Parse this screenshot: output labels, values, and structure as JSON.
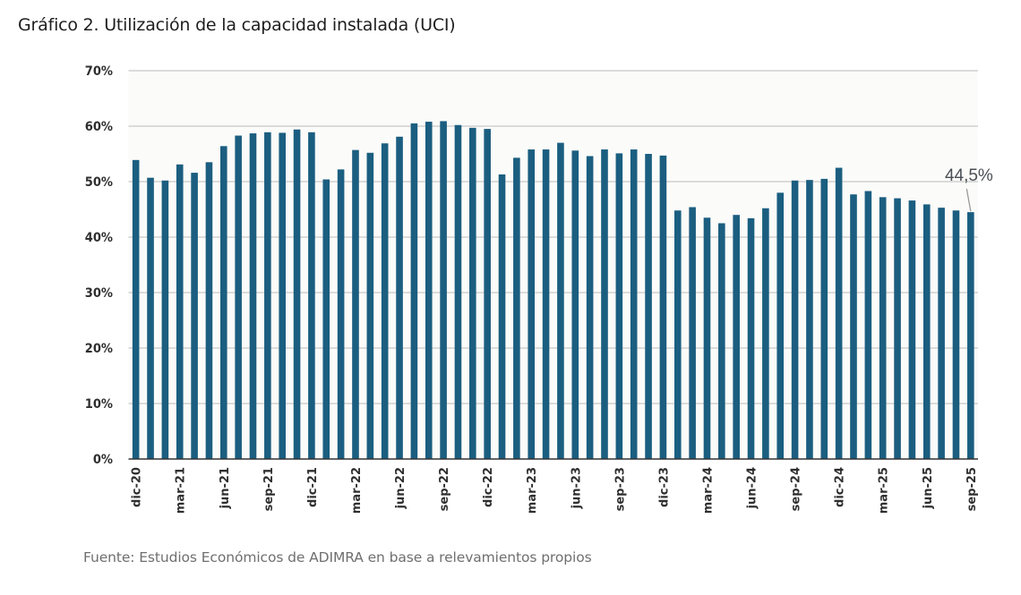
{
  "header": {
    "title": "Gráfico 2. Utilización de la capacidad instalada (UCI)"
  },
  "footer": {
    "source": "Fuente: Estudios Económicos de ADIMRA en base a relevamientos propios"
  },
  "colors": {
    "bar": "#1b5e80",
    "grid": "#c8c8c8",
    "plot_background": "#fbfbf9",
    "axis": "#333333",
    "annotation": "#4a4f55"
  },
  "chart_data": {
    "type": "bar",
    "title": "Gráfico 2. Utilización de la capacidad instalada (UCI)",
    "xlabel": "",
    "ylabel": "",
    "ylim": [
      0,
      70
    ],
    "y_ticks": [
      "0%",
      "10%",
      "20%",
      "30%",
      "40%",
      "50%",
      "60%",
      "70%"
    ],
    "y_tick_values": [
      0,
      10,
      20,
      30,
      40,
      50,
      60,
      70
    ],
    "grid": true,
    "legend": "none",
    "categories": [
      "dic-20",
      "ene-21",
      "feb-21",
      "mar-21",
      "abr-21",
      "may-21",
      "jun-21",
      "jul-21",
      "ago-21",
      "sep-21",
      "oct-21",
      "nov-21",
      "dic-21",
      "ene-22",
      "feb-22",
      "mar-22",
      "abr-22",
      "may-22",
      "jun-22",
      "jul-22",
      "ago-22",
      "sep-22",
      "oct-22",
      "nov-22",
      "dic-22",
      "ene-23",
      "feb-23",
      "mar-23",
      "abr-23",
      "may-23",
      "jun-23",
      "jul-23",
      "ago-23",
      "sep-23",
      "oct-23",
      "nov-23",
      "dic-23",
      "ene-24",
      "feb-24",
      "mar-24",
      "abr-24",
      "may-24",
      "jun-24",
      "jul-24",
      "ago-24",
      "sep-24",
      "oct-24",
      "nov-24",
      "dic-24",
      "ene-25",
      "feb-25",
      "mar-25",
      "abr-25",
      "may-25",
      "jun-25",
      "jul-25",
      "ago-25",
      "sep-25"
    ],
    "x_tick_labels": [
      "dic-20",
      "mar-21",
      "jun-21",
      "sep-21",
      "dic-21",
      "mar-22",
      "jun-22",
      "sep-22",
      "dic-22",
      "mar-23",
      "jun-23",
      "sep-23",
      "dic-23",
      "mar-24",
      "jun-24",
      "sep-24",
      "dic-24",
      "mar-25",
      "jun-25",
      "sep-25"
    ],
    "x_tick_every": 3,
    "series": [
      {
        "name": "UCI",
        "values": [
          53.9,
          50.7,
          50.2,
          53.1,
          51.6,
          53.5,
          56.4,
          58.3,
          58.7,
          58.9,
          58.8,
          59.4,
          58.9,
          50.4,
          52.2,
          55.7,
          55.2,
          56.9,
          58.1,
          60.5,
          60.8,
          60.9,
          60.2,
          59.7,
          59.5,
          51.3,
          54.3,
          55.8,
          55.8,
          57.0,
          55.6,
          54.6,
          55.8,
          55.1,
          55.8,
          55.0,
          54.7,
          44.8,
          45.4,
          43.5,
          42.5,
          44.0,
          43.4,
          45.2,
          48.0,
          50.2,
          50.3,
          50.5,
          52.5,
          47.7,
          48.3,
          47.2,
          47.0,
          46.6,
          45.9,
          45.3,
          44.8,
          44.5
        ]
      }
    ],
    "annotations": [
      {
        "category": "sep-25",
        "text": "44,5%",
        "value": 44.5
      }
    ]
  }
}
